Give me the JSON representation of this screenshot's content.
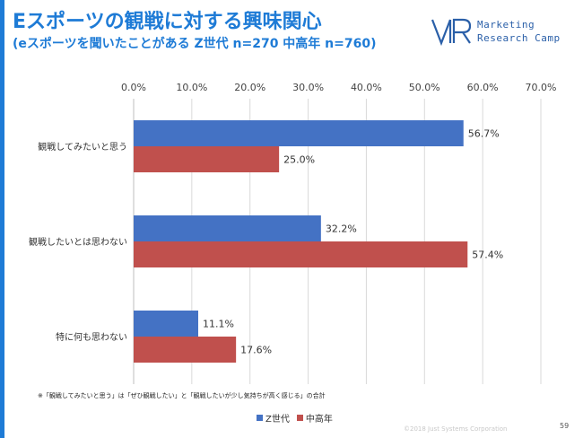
{
  "header": {
    "title": "Eスポーツの観戦に対する興味関心",
    "subtitle": "(eスポーツを聞いたことがある Z世代 n=270 中高年 n=760)"
  },
  "logo": {
    "line1": "Marketing",
    "line2": "Research Camp"
  },
  "footnote": "※「観戦してみたいと思う」は「ぜひ観戦したい」と「観戦したいが少し気持ちが高く感じる」の合計",
  "copyright": "©2018 Just Systems Corporation",
  "page_number": "59",
  "colors": {
    "accent": "#1e7bd6",
    "series_z": "#4472c4",
    "series_mid": "#c0504d"
  },
  "chart_data": {
    "type": "bar",
    "orientation": "horizontal",
    "categories": [
      "観戦してみたいと思う",
      "観戦したいとは思わない",
      "特に何も思わない"
    ],
    "series": [
      {
        "name": "Z世代",
        "values": [
          56.7,
          32.2,
          11.1
        ],
        "color": "#4472c4"
      },
      {
        "name": "中高年",
        "values": [
          25.0,
          57.4,
          17.6
        ],
        "color": "#c0504d"
      }
    ],
    "xlim": [
      0,
      70
    ],
    "x_ticks": [
      "0.0%",
      "10.0%",
      "20.0%",
      "30.0%",
      "40.0%",
      "50.0%",
      "60.0%",
      "70.0%"
    ],
    "value_labels": [
      [
        "56.7%",
        "32.2%",
        "11.1%"
      ],
      [
        "25.0%",
        "57.4%",
        "17.6%"
      ]
    ],
    "grid": true,
    "legend_position": "bottom"
  }
}
